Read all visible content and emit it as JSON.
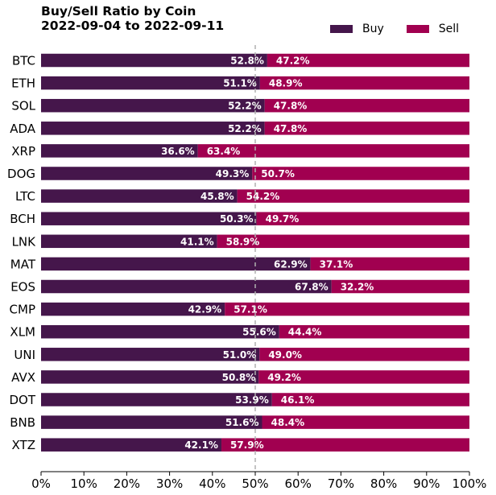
{
  "chart_data": {
    "type": "bar",
    "orientation": "horizontal",
    "stacked": true,
    "title": "Buy/Sell Ratio by Coin",
    "subtitle": "2022-09-04 to 2022-09-11",
    "categories": [
      "BTC",
      "ETH",
      "SOL",
      "ADA",
      "XRP",
      "DOG",
      "LTC",
      "BCH",
      "LNK",
      "MAT",
      "EOS",
      "CMP",
      "XLM",
      "UNI",
      "AVX",
      "DOT",
      "BNB",
      "XTZ"
    ],
    "series": [
      {
        "name": "Buy",
        "values": [
          52.8,
          51.1,
          52.2,
          52.2,
          36.6,
          49.3,
          45.8,
          50.3,
          41.1,
          62.9,
          67.8,
          42.9,
          55.6,
          51.0,
          50.8,
          53.9,
          51.6,
          42.1
        ]
      },
      {
        "name": "Sell",
        "values": [
          47.2,
          48.9,
          47.8,
          47.8,
          63.4,
          50.7,
          54.2,
          49.7,
          58.9,
          37.1,
          32.2,
          57.1,
          44.4,
          49.0,
          49.2,
          46.1,
          48.4,
          57.9
        ]
      }
    ],
    "xlim": [
      0,
      100
    ],
    "xticks": [
      "0%",
      "10%",
      "20%",
      "30%",
      "40%",
      "50%",
      "60%",
      "70%",
      "80%",
      "90%",
      "100%"
    ],
    "reference_line": 50,
    "legend_position": "top-right",
    "colors": {
      "Buy": "#45164b",
      "Sell": "#a10050",
      "reference": "#b0b0b0",
      "label": "#ffffff"
    }
  }
}
